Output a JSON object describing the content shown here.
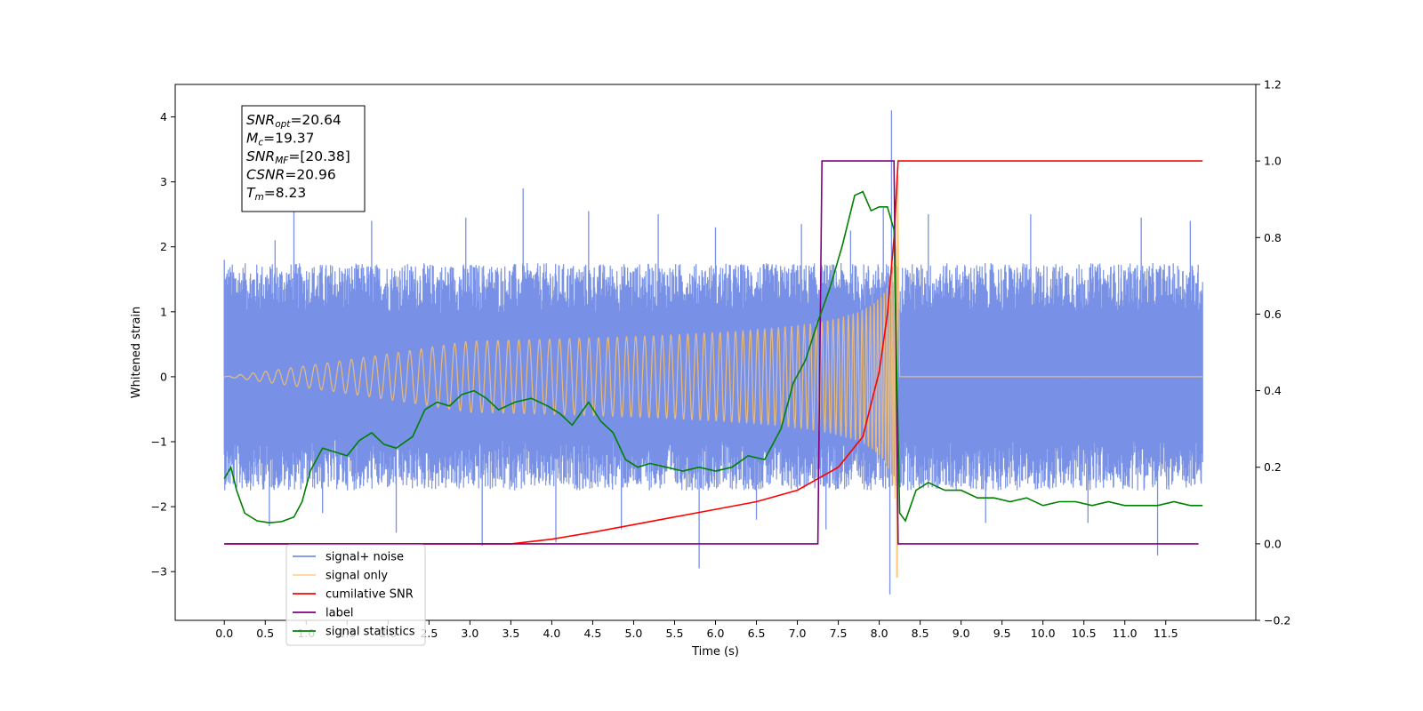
{
  "chart_data": {
    "type": "line",
    "xlabel": "Time (s)",
    "ylabel_left": "Whitened strain",
    "ylabel_right": "",
    "xlim": [
      -0.6,
      12.6
    ],
    "ylim_left": [
      -3.75,
      4.5
    ],
    "ylim_right": [
      -0.2,
      1.2
    ],
    "x_ticks": [
      "0.0",
      "0.5",
      "1.0",
      "1.5",
      "2.0",
      "2.5",
      "3.0",
      "3.5",
      "4.0",
      "4.5",
      "5.0",
      "5.5",
      "6.0",
      "6.5",
      "7.0",
      "7.5",
      "8.0",
      "8.5",
      "9.0",
      "9.5",
      "10.0",
      "10.5",
      "11.0",
      "11.5"
    ],
    "y_ticks_left": [
      "−3",
      "−2",
      "−1",
      "0",
      "1",
      "2",
      "3",
      "4"
    ],
    "y_ticks_right": [
      "−0.2",
      "0.0",
      "0.2",
      "0.4",
      "0.6",
      "0.8",
      "1.0",
      "1.2"
    ],
    "grid": false,
    "legend_location": "lower-left",
    "annotation": {
      "lines": [
        {
          "sym": "SNR",
          "sub": "opt",
          "rest": "=20.64"
        },
        {
          "sym": "M",
          "sub": "c",
          "rest": "=19.37"
        },
        {
          "sym": "SNR",
          "sub": "MF",
          "rest": "=[20.38]"
        },
        {
          "sym": "CSNR",
          "sub": "",
          "rest": "=20.96"
        },
        {
          "sym": "T",
          "sub": "m",
          "rest": "=8.23"
        }
      ]
    },
    "series": [
      {
        "name": "signal+ noise",
        "color": "#7891e6",
        "axis": "left",
        "kind": "noise_band",
        "x_range": [
          0.0,
          11.95
        ],
        "band": [
          -1.75,
          1.75
        ],
        "spikes": [
          [
            0.0,
            1.8
          ],
          [
            0.55,
            -2.3
          ],
          [
            0.62,
            2.1
          ],
          [
            0.85,
            2.6
          ],
          [
            1.2,
            -2.1
          ],
          [
            1.8,
            2.4
          ],
          [
            2.1,
            -2.4
          ],
          [
            2.95,
            2.45
          ],
          [
            3.15,
            -2.6
          ],
          [
            3.65,
            2.9
          ],
          [
            4.05,
            -2.55
          ],
          [
            4.45,
            2.55
          ],
          [
            4.85,
            -2.35
          ],
          [
            5.3,
            2.5
          ],
          [
            5.8,
            -2.95
          ],
          [
            6.0,
            2.3
          ],
          [
            6.5,
            -2.2
          ],
          [
            7.05,
            2.35
          ],
          [
            7.35,
            -2.35
          ],
          [
            7.65,
            2.25
          ],
          [
            8.05,
            2.6
          ],
          [
            8.15,
            4.1
          ],
          [
            8.13,
            -3.35
          ],
          [
            8.6,
            2.5
          ],
          [
            9.3,
            -2.25
          ],
          [
            9.85,
            2.5
          ],
          [
            10.55,
            -2.25
          ],
          [
            11.2,
            2.45
          ],
          [
            11.4,
            -2.75
          ],
          [
            11.8,
            2.4
          ]
        ]
      },
      {
        "name": "signal only",
        "color": "#ffc466",
        "axis": "left",
        "kind": "chirp",
        "t_merger": 8.23,
        "amplitude_at_merger": 3.1
      },
      {
        "name": "cumilative SNR",
        "color": "#ff0000",
        "axis": "right",
        "x": [
          0.0,
          3.0,
          3.5,
          4.0,
          4.5,
          5.0,
          5.5,
          6.0,
          6.5,
          7.0,
          7.5,
          7.8,
          8.0,
          8.1,
          8.18,
          8.23,
          8.3,
          11.95
        ],
        "y": [
          0.0,
          0.0,
          0.0,
          0.012,
          0.03,
          0.05,
          0.07,
          0.09,
          0.11,
          0.14,
          0.2,
          0.28,
          0.45,
          0.6,
          0.8,
          1.0,
          1.0,
          1.0
        ]
      },
      {
        "name": "label",
        "color": "#800080",
        "axis": "right",
        "x": [
          0.0,
          7.25,
          7.3,
          8.18,
          8.23,
          11.9
        ],
        "y": [
          0.0,
          0.0,
          1.0,
          1.0,
          0.0,
          0.0
        ]
      },
      {
        "name": "signal statistics",
        "color": "#008000",
        "axis": "right",
        "x": [
          0.0,
          0.08,
          0.15,
          0.25,
          0.4,
          0.55,
          0.7,
          0.85,
          0.95,
          1.05,
          1.2,
          1.35,
          1.5,
          1.65,
          1.8,
          1.95,
          2.1,
          2.3,
          2.45,
          2.6,
          2.75,
          2.9,
          3.05,
          3.2,
          3.35,
          3.55,
          3.75,
          3.95,
          4.1,
          4.25,
          4.45,
          4.6,
          4.75,
          4.9,
          5.05,
          5.2,
          5.4,
          5.6,
          5.8,
          6.0,
          6.2,
          6.4,
          6.6,
          6.8,
          6.95,
          7.1,
          7.25,
          7.4,
          7.55,
          7.7,
          7.8,
          7.9,
          8.0,
          8.1,
          8.18,
          8.25,
          8.32,
          8.45,
          8.6,
          8.8,
          9.0,
          9.2,
          9.4,
          9.6,
          9.8,
          10.0,
          10.2,
          10.4,
          10.6,
          10.8,
          11.0,
          11.2,
          11.4,
          11.6,
          11.8,
          11.95
        ],
        "y": [
          0.17,
          0.2,
          0.14,
          0.08,
          0.06,
          0.055,
          0.058,
          0.07,
          0.11,
          0.19,
          0.25,
          0.24,
          0.23,
          0.27,
          0.29,
          0.26,
          0.25,
          0.28,
          0.35,
          0.37,
          0.36,
          0.39,
          0.4,
          0.38,
          0.35,
          0.37,
          0.38,
          0.36,
          0.34,
          0.31,
          0.37,
          0.32,
          0.29,
          0.22,
          0.2,
          0.21,
          0.2,
          0.19,
          0.2,
          0.19,
          0.2,
          0.23,
          0.22,
          0.3,
          0.42,
          0.48,
          0.58,
          0.67,
          0.78,
          0.91,
          0.92,
          0.87,
          0.88,
          0.88,
          0.82,
          0.08,
          0.06,
          0.14,
          0.16,
          0.14,
          0.14,
          0.12,
          0.12,
          0.11,
          0.12,
          0.1,
          0.11,
          0.11,
          0.1,
          0.11,
          0.1,
          0.1,
          0.1,
          0.11,
          0.1,
          0.1
        ]
      }
    ]
  }
}
